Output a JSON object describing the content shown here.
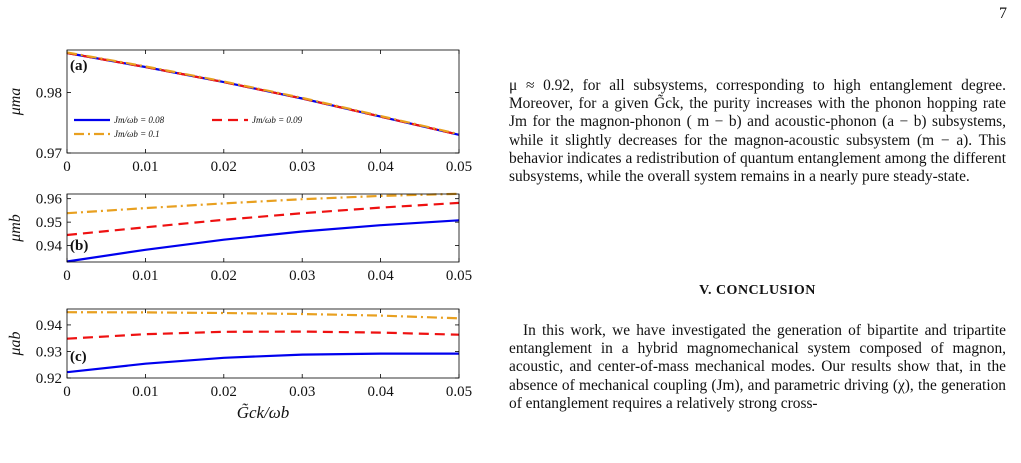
{
  "page": {
    "number": "7"
  },
  "figure": {
    "shared_xlabel": "G̃ck/ωb",
    "xticks": [
      "0",
      "0.01",
      "0.02",
      "0.03",
      "0.04",
      "0.05"
    ],
    "legend": {
      "entries": [
        "Jm/ωb = 0.08",
        "Jm/ωb = 0.09",
        "Jm/ωb = 0.1"
      ]
    }
  },
  "chart_data": [
    {
      "type": "line",
      "panel_label": "(a)",
      "ylabel": "μma",
      "xlim": [
        0,
        0.05
      ],
      "ylim": [
        0.97,
        0.987
      ],
      "yticks": [
        "0.97",
        "0.98"
      ],
      "legend_placement": "left",
      "series": [
        {
          "name": "Jm/ωb = 0.08",
          "color": "#0000ee",
          "style": "solid",
          "x": [
            0,
            0.01,
            0.02,
            0.03,
            0.04,
            0.05
          ],
          "y": [
            0.9865,
            0.9842,
            0.9817,
            0.979,
            0.976,
            0.973
          ]
        },
        {
          "name": "Jm/ωb = 0.09",
          "color": "#ee1111",
          "style": "dashed",
          "x": [
            0,
            0.01,
            0.02,
            0.03,
            0.04,
            0.05
          ],
          "y": [
            0.9865,
            0.9842,
            0.9817,
            0.979,
            0.976,
            0.973
          ]
        },
        {
          "name": "Jm/ωb = 0.1",
          "color": "#e8a020",
          "style": "dashdot",
          "x": [
            0,
            0.01,
            0.02,
            0.03,
            0.04,
            0.05
          ],
          "y": [
            0.9866,
            0.9843,
            0.9818,
            0.9791,
            0.9761,
            0.9731
          ]
        }
      ]
    },
    {
      "type": "line",
      "panel_label": "(b)",
      "ylabel": "μmb",
      "xlim": [
        0,
        0.05
      ],
      "ylim": [
        0.933,
        0.962
      ],
      "yticks": [
        "0.94",
        "0.95",
        "0.96"
      ],
      "series": [
        {
          "name": "Jm/ωb = 0.08",
          "color": "#0000ee",
          "style": "solid",
          "x": [
            0,
            0.01,
            0.02,
            0.03,
            0.04,
            0.05
          ],
          "y": [
            0.9332,
            0.9382,
            0.9425,
            0.946,
            0.9487,
            0.9508
          ]
        },
        {
          "name": "Jm/ωb = 0.09",
          "color": "#ee1111",
          "style": "dashed",
          "x": [
            0,
            0.01,
            0.02,
            0.03,
            0.04,
            0.05
          ],
          "y": [
            0.9445,
            0.9478,
            0.951,
            0.9538,
            0.9562,
            0.9582
          ]
        },
        {
          "name": "Jm/ωb = 0.1",
          "color": "#e8a020",
          "style": "dashdot",
          "x": [
            0,
            0.01,
            0.02,
            0.03,
            0.04,
            0.05
          ],
          "y": [
            0.9538,
            0.956,
            0.958,
            0.9598,
            0.9612,
            0.9621
          ]
        }
      ]
    },
    {
      "type": "line",
      "panel_label": "(c)",
      "ylabel": "μab",
      "xlim": [
        0,
        0.05
      ],
      "ylim": [
        0.92,
        0.946
      ],
      "yticks": [
        "0.92",
        "0.93",
        "0.94"
      ],
      "series": [
        {
          "name": "Jm/ωb = 0.08",
          "color": "#0000ee",
          "style": "solid",
          "x": [
            0,
            0.01,
            0.02,
            0.03,
            0.04,
            0.05
          ],
          "y": [
            0.9222,
            0.9254,
            0.9276,
            0.9288,
            0.9292,
            0.9292
          ]
        },
        {
          "name": "Jm/ωb = 0.09",
          "color": "#ee1111",
          "style": "dashed",
          "x": [
            0,
            0.01,
            0.02,
            0.03,
            0.04,
            0.05
          ],
          "y": [
            0.9348,
            0.9365,
            0.9374,
            0.9375,
            0.9371,
            0.9363
          ]
        },
        {
          "name": "Jm/ωb = 0.1",
          "color": "#e8a020",
          "style": "dashdot",
          "x": [
            0,
            0.01,
            0.02,
            0.03,
            0.04,
            0.05
          ],
          "y": [
            0.9448,
            0.9447,
            0.9445,
            0.9441,
            0.9435,
            0.9425
          ]
        }
      ]
    }
  ],
  "text": {
    "paragraph1": "μ ≈ 0.92, for all subsystems, corresponding to high entanglement degree. Moreover, for a given G̃ck, the purity increases with the phonon hopping rate Jm for the magnon-phonon ( m − b) and acoustic-phonon (a − b) subsystems, while it slightly decreases for the magnon-acoustic subsystem (m − a). This behavior indicates a redistribution of quantum entanglement among the different subsystems, while the overall system remains in a nearly pure steady-state.",
    "section_heading": "V.   CONCLUSION",
    "paragraph2": "In this work, we have investigated the generation of bipartite and tripartite entanglement in a hybrid magnomechanical system composed of magnon, acoustic, and center-of-mass mechanical modes. Our results show that, in the absence of mechanical coupling (Jm), and parametric driving (χ), the generation of entanglement requires a relatively strong cross-"
  }
}
